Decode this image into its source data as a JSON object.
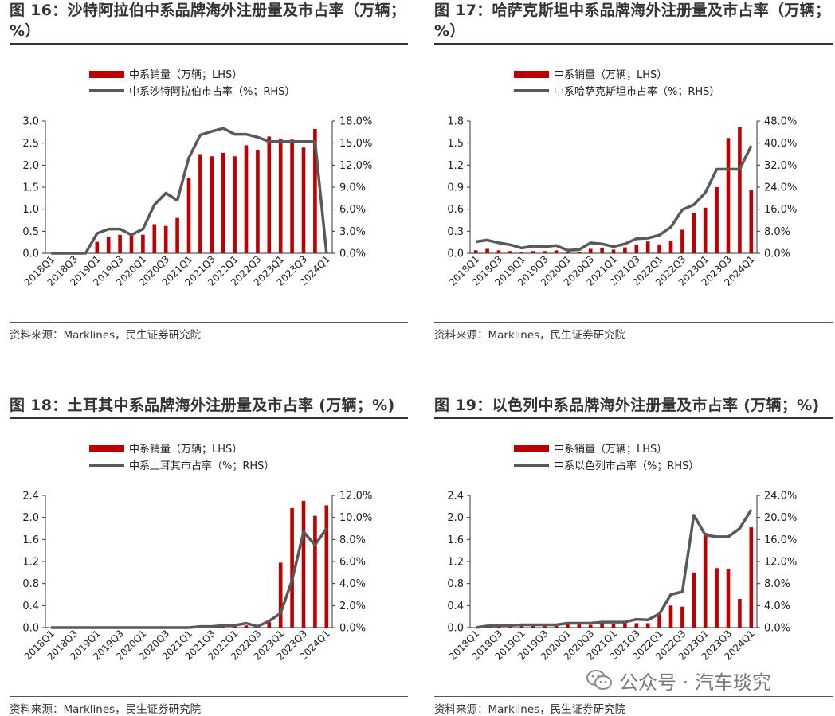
{
  "panels": [
    {
      "title": "图 16：沙特阿拉伯中系品牌海外注册量及市占率（万辆；%）",
      "source": "资料来源：Marklines，民生证券研究院"
    },
    {
      "title": "图 17：哈萨克斯坦中系品牌海外注册量及市占率（万辆；%）",
      "source": "资料来源：Marklines，民生证券研究院"
    },
    {
      "title": "图 18：土耳其中系品牌海外注册量及市占率 (万辆；%)",
      "source": "资料来源：Marklines，民生证券研究院"
    },
    {
      "title": "图 19：以色列中系品牌海外注册量及市占率 (万辆；%)",
      "source": "资料来源：Marklines，民生证券研究院"
    }
  ],
  "watermark": {
    "text": "公众号 · 汽车琰究",
    "icon": "wechat-icon"
  },
  "colors": {
    "bar": "#C00000",
    "line": "#595959"
  },
  "chart_data": [
    {
      "type": "bar+line",
      "categories": [
        "2018Q1",
        "2018Q2",
        "2018Q3",
        "2018Q4",
        "2019Q1",
        "2019Q2",
        "2019Q3",
        "2019Q4",
        "2020Q1",
        "2020Q2",
        "2020Q3",
        "2020Q4",
        "2021Q1",
        "2021Q2",
        "2021Q3",
        "2021Q4",
        "2022Q1",
        "2022Q2",
        "2022Q3",
        "2022Q4",
        "2023Q1",
        "2023Q2",
        "2023Q3",
        "2023Q4",
        "2024Q1"
      ],
      "tick_labels": [
        "2018Q1",
        "2018Q3",
        "2019Q1",
        "2019Q3",
        "2020Q1",
        "2020Q3",
        "2021Q1",
        "2021Q3",
        "2022Q1",
        "2022Q3",
        "2023Q1",
        "2023Q3",
        "2024Q1"
      ],
      "series": [
        {
          "name": "中系销量（万辆；LHS）",
          "kind": "bar",
          "axis": "left",
          "values": [
            0,
            0,
            0,
            0,
            0.26,
            0.38,
            0.42,
            0.4,
            0.42,
            0.66,
            0.62,
            0.8,
            1.7,
            2.25,
            2.2,
            2.28,
            2.2,
            2.45,
            2.35,
            2.65,
            2.6,
            2.58,
            2.4,
            2.82,
            0
          ]
        },
        {
          "name": "中系沙特阿拉伯市占率（%；RHS）",
          "kind": "line",
          "axis": "right",
          "values": [
            0,
            0,
            0,
            0,
            2.7,
            3.3,
            3.3,
            2.5,
            3.3,
            6.6,
            8.2,
            7.2,
            13.0,
            16.1,
            16.6,
            17.0,
            16.2,
            16.2,
            15.8,
            15.2,
            15.2,
            15.2,
            15.2,
            15.2,
            0
          ]
        }
      ],
      "left_axis": {
        "min": 0,
        "max": 3.0,
        "ticks": [
          "0.0",
          "0.5",
          "1.0",
          "1.5",
          "2.0",
          "2.5",
          "3.0"
        ]
      },
      "right_axis": {
        "min": 0,
        "max": 18,
        "ticks": [
          "0.0%",
          "3.0%",
          "6.0%",
          "9.0%",
          "12.0%",
          "15.0%",
          "18.0%"
        ]
      },
      "legend": "top-center"
    },
    {
      "type": "bar+line",
      "categories": [
        "2018Q1",
        "2018Q2",
        "2018Q3",
        "2018Q4",
        "2019Q1",
        "2019Q2",
        "2019Q3",
        "2019Q4",
        "2020Q1",
        "2020Q2",
        "2020Q3",
        "2020Q4",
        "2021Q1",
        "2021Q2",
        "2021Q3",
        "2021Q4",
        "2022Q1",
        "2022Q2",
        "2022Q3",
        "2022Q4",
        "2023Q1",
        "2023Q2",
        "2023Q3",
        "2023Q4",
        "2024Q1"
      ],
      "tick_labels": [
        "2018Q1",
        "2018Q3",
        "2019Q1",
        "2019Q3",
        "2020Q1",
        "2020Q3",
        "2021Q1",
        "2021Q3",
        "2022Q1",
        "2022Q3",
        "2023Q1",
        "2023Q3",
        "2024Q1"
      ],
      "series": [
        {
          "name": "中系销量（万辆；LHS）",
          "kind": "bar",
          "axis": "left",
          "values": [
            0.04,
            0.06,
            0.04,
            0.03,
            0.02,
            0.03,
            0.03,
            0.04,
            0.02,
            0.02,
            0.06,
            0.07,
            0.05,
            0.08,
            0.12,
            0.16,
            0.12,
            0.17,
            0.32,
            0.55,
            0.62,
            0.9,
            1.57,
            1.72,
            0.86
          ]
        },
        {
          "name": "中系哈萨克斯坦市占率（%；RHS）",
          "kind": "line",
          "axis": "right",
          "values": [
            4.2,
            4.8,
            3.8,
            3.1,
            1.9,
            2.6,
            2.4,
            2.8,
            1.1,
            1.3,
            3.8,
            3.4,
            2.4,
            3.4,
            5.3,
            5.5,
            6.6,
            9.5,
            15.8,
            17.6,
            22.0,
            30.5,
            30.5,
            30.5,
            39.0
          ]
        }
      ],
      "left_axis": {
        "min": 0,
        "max": 1.8,
        "ticks": [
          "0.0",
          "0.3",
          "0.6",
          "0.9",
          "1.2",
          "1.5",
          "1.8"
        ]
      },
      "right_axis": {
        "min": 0,
        "max": 48,
        "ticks": [
          "0.0%",
          "8.0%",
          "16.0%",
          "24.0%",
          "32.0%",
          "40.0%",
          "48.0%"
        ]
      },
      "legend": "top-center"
    },
    {
      "type": "bar+line",
      "categories": [
        "2018Q1",
        "2018Q2",
        "2018Q3",
        "2018Q4",
        "2019Q1",
        "2019Q2",
        "2019Q3",
        "2019Q4",
        "2020Q1",
        "2020Q2",
        "2020Q3",
        "2020Q4",
        "2021Q1",
        "2021Q2",
        "2021Q3",
        "2021Q4",
        "2022Q1",
        "2022Q2",
        "2022Q3",
        "2022Q4",
        "2023Q1",
        "2023Q2",
        "2023Q3",
        "2023Q4",
        "2024Q1"
      ],
      "tick_labels": [
        "2018Q1",
        "2018Q3",
        "2019Q1",
        "2019Q3",
        "2020Q1",
        "2020Q3",
        "2021Q1",
        "2021Q3",
        "2022Q1",
        "2022Q3",
        "2023Q1",
        "2023Q3",
        "2024Q1"
      ],
      "series": [
        {
          "name": "中系销量（万辆；LHS）",
          "kind": "bar",
          "axis": "left",
          "values": [
            0,
            0,
            0,
            0,
            0,
            0,
            0,
            0,
            0,
            0,
            0,
            0,
            0,
            0.01,
            0.01,
            0.02,
            0.03,
            0.04,
            0.02,
            0.1,
            1.18,
            2.17,
            2.3,
            2.03,
            2.22
          ]
        },
        {
          "name": "中系土耳其市占率（%；RHS）",
          "kind": "line",
          "axis": "right",
          "values": [
            0,
            0,
            0,
            0,
            0,
            0,
            0,
            0,
            0,
            0,
            0,
            0,
            0,
            0.1,
            0.1,
            0.2,
            0.2,
            0.4,
            0.1,
            0.6,
            1.3,
            4.3,
            8.7,
            7.5,
            9.0
          ]
        }
      ],
      "left_axis": {
        "min": 0,
        "max": 2.4,
        "ticks": [
          "0.0",
          "0.4",
          "0.8",
          "1.2",
          "1.6",
          "2.0",
          "2.4"
        ]
      },
      "right_axis": {
        "min": 0,
        "max": 12,
        "ticks": [
          "0.0%",
          "2.0%",
          "4.0%",
          "6.0%",
          "8.0%",
          "10.0%",
          "12.0%"
        ]
      },
      "legend": "top-center"
    },
    {
      "type": "bar+line",
      "categories": [
        "2018Q1",
        "2018Q2",
        "2018Q3",
        "2018Q4",
        "2019Q1",
        "2019Q2",
        "2019Q3",
        "2019Q4",
        "2020Q1",
        "2020Q2",
        "2020Q3",
        "2020Q4",
        "2021Q1",
        "2021Q2",
        "2021Q3",
        "2021Q4",
        "2022Q1",
        "2022Q2",
        "2022Q3",
        "2022Q4",
        "2023Q1",
        "2023Q2",
        "2023Q3",
        "2023Q4",
        "2024Q1"
      ],
      "tick_labels": [
        "2018Q1",
        "2018Q3",
        "2019Q1",
        "2019Q3",
        "2020Q1",
        "2020Q3",
        "2021Q1",
        "2021Q3",
        "2022Q1",
        "2022Q3",
        "2023Q1",
        "2023Q3",
        "2024Q1"
      ],
      "series": [
        {
          "name": "中系销量（万辆；LHS）",
          "kind": "bar",
          "axis": "left",
          "values": [
            0,
            0.01,
            0.02,
            0.02,
            0.03,
            0.03,
            0.03,
            0.04,
            0.07,
            0.06,
            0.05,
            0.08,
            0.06,
            0.1,
            0.08,
            0.08,
            0.24,
            0.4,
            0.38,
            1.0,
            1.72,
            1.08,
            1.06,
            0.52,
            1.82
          ]
        },
        {
          "name": "中系以色列市占率（%；RHS）",
          "kind": "line",
          "axis": "right",
          "values": [
            0,
            0.3,
            0.4,
            0.4,
            0.5,
            0.5,
            0.5,
            0.5,
            0.8,
            0.8,
            0.8,
            1.0,
            1.0,
            1.0,
            1.5,
            1.4,
            2.5,
            6.0,
            6.5,
            20.4,
            16.8,
            16.5,
            16.5,
            18.0,
            21.4
          ]
        }
      ],
      "left_axis": {
        "min": 0,
        "max": 2.4,
        "ticks": [
          "0.0",
          "0.4",
          "0.8",
          "1.2",
          "1.6",
          "2.0",
          "2.4"
        ]
      },
      "right_axis": {
        "min": 0,
        "max": 24,
        "ticks": [
          "0.0%",
          "4.0%",
          "8.0%",
          "12.0%",
          "16.0%",
          "20.0%",
          "24.0%"
        ]
      },
      "legend": "top-center"
    }
  ]
}
